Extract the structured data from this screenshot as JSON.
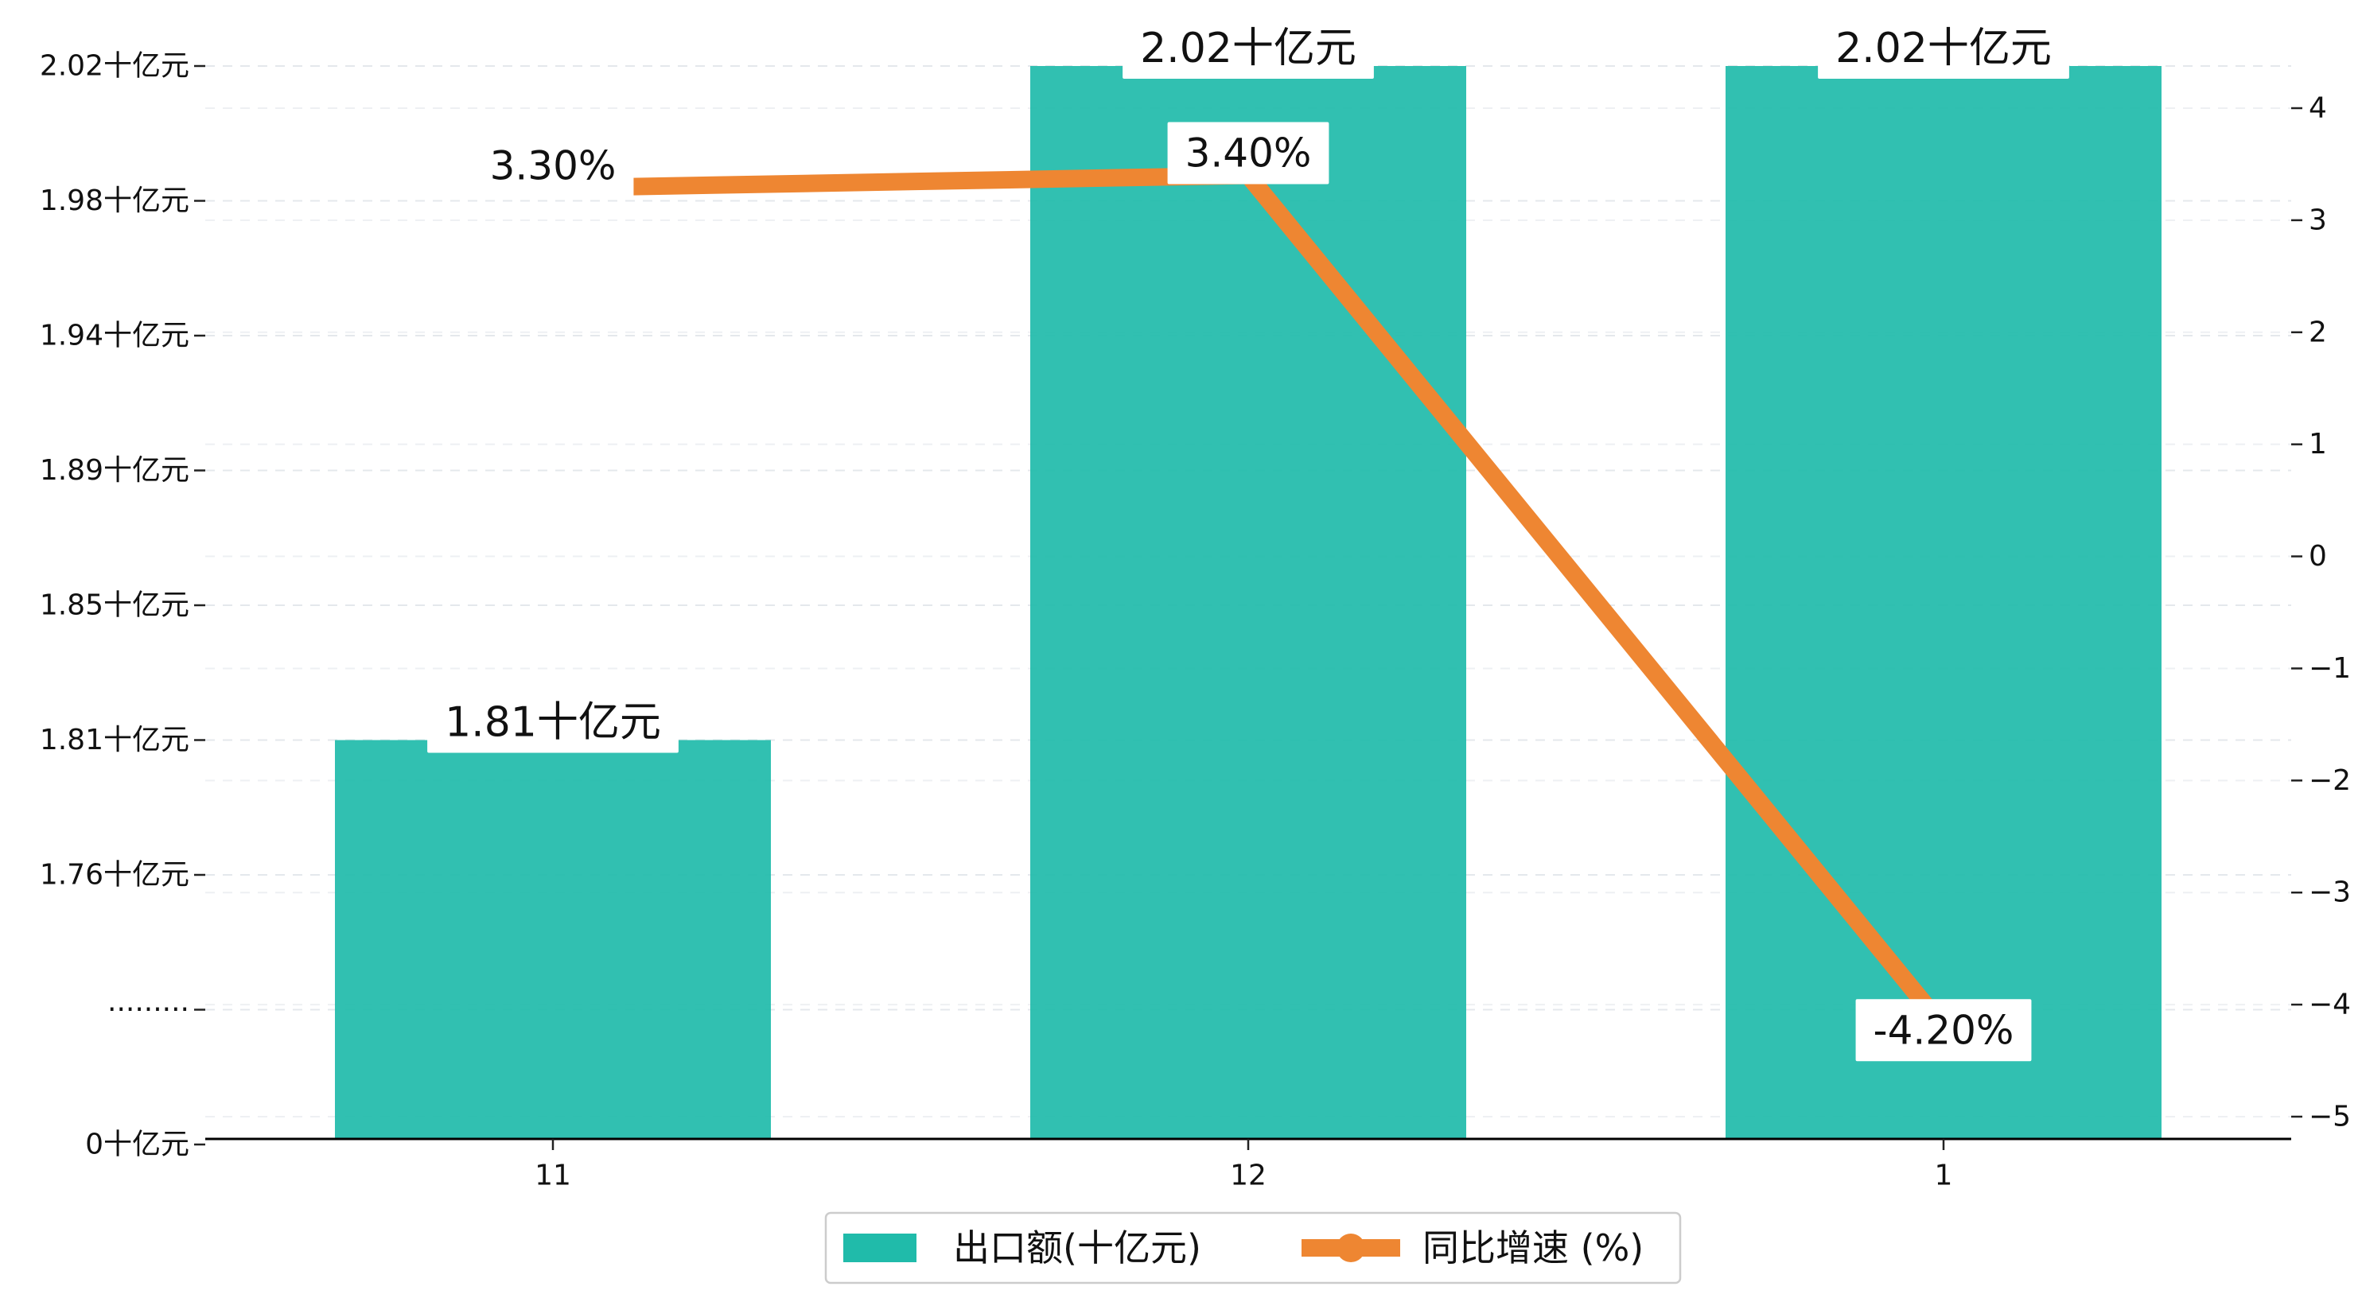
{
  "chart_data": {
    "type": "bar+line",
    "categories": [
      "11",
      "12",
      "1"
    ],
    "series": [
      {
        "name": "出口额(十亿元)",
        "type": "bar",
        "axis": "left",
        "values": [
          1.81,
          2.02,
          2.02
        ],
        "labels": [
          "1.81十亿元",
          "2.02十亿元",
          "2.02十亿元"
        ],
        "color": "#20bbaa"
      },
      {
        "name": "同比增速 (%)",
        "type": "line",
        "axis": "right",
        "values": [
          3.3,
          3.4,
          -4.2
        ],
        "labels": [
          "3.30%",
          "3.40%",
          "-4.20%"
        ],
        "color": "#ee8632"
      }
    ],
    "left_axis": {
      "scale": "broken",
      "ticks": [
        {
          "value": 0,
          "label": "0十亿元"
        },
        {
          "value": null,
          "label": "·········"
        },
        {
          "value": 1.76,
          "label": "1.76十亿元"
        },
        {
          "value": 1.81,
          "label": "1.81十亿元"
        },
        {
          "value": 1.85,
          "label": "1.85十亿元"
        },
        {
          "value": 1.89,
          "label": "1.89十亿元"
        },
        {
          "value": 1.94,
          "label": "1.94十亿元"
        },
        {
          "value": 1.98,
          "label": "1.98十亿元"
        },
        {
          "value": 2.02,
          "label": "2.02十亿元"
        }
      ]
    },
    "right_axis": {
      "ylim": [
        -5,
        4
      ],
      "ticks": [
        -5,
        -4,
        -3,
        -2,
        -1,
        0,
        1,
        2,
        3,
        4
      ],
      "tick_labels": [
        "−5",
        "−4",
        "−3",
        "−2",
        "−1",
        "0",
        "1",
        "2",
        "3",
        "4"
      ]
    },
    "grid": true,
    "legend": {
      "position": "bottom-center"
    },
    "title": "",
    "xlabel": "",
    "ylabel": ""
  }
}
